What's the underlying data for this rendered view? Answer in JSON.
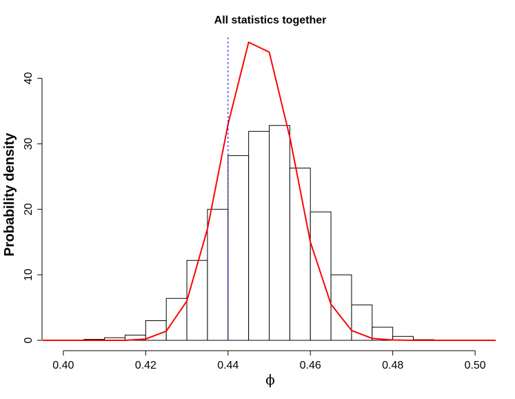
{
  "chart_data": {
    "type": "bar",
    "title": "All statistics together",
    "xlabel": "ϕ",
    "ylabel": "Probability density",
    "xlim": [
      0.395,
      0.505
    ],
    "ylim": [
      0,
      47
    ],
    "xticks": [
      0.4,
      0.42,
      0.44,
      0.46,
      0.48,
      0.5
    ],
    "xtick_labels": [
      "0.40",
      "0.42",
      "0.44",
      "0.46",
      "0.48",
      "0.50"
    ],
    "yticks": [
      0,
      10,
      20,
      30,
      40
    ],
    "ytick_labels": [
      "0",
      "10",
      "20",
      "30",
      "40"
    ],
    "grid": false,
    "histogram": {
      "bin_width": 0.005,
      "bin_starts": [
        0.405,
        0.41,
        0.415,
        0.42,
        0.425,
        0.43,
        0.435,
        0.44,
        0.445,
        0.45,
        0.455,
        0.46,
        0.465,
        0.47,
        0.475,
        0.48,
        0.485
      ],
      "values": [
        0.15,
        0.4,
        0.8,
        3.0,
        6.4,
        12.2,
        20.0,
        28.2,
        31.9,
        32.8,
        26.3,
        19.6,
        10.0,
        5.4,
        2.0,
        0.6,
        0.1
      ],
      "fill": "#ffffff",
      "stroke": "#000000"
    },
    "density_curve": {
      "color": "#ff0000",
      "x": [
        0.395,
        0.405,
        0.41,
        0.415,
        0.42,
        0.425,
        0.43,
        0.435,
        0.44,
        0.445,
        0.45,
        0.455,
        0.46,
        0.465,
        0.47,
        0.475,
        0.48,
        0.485,
        0.49,
        0.505
      ],
      "y": [
        0,
        0,
        0,
        0,
        0.2,
        1.4,
        6.0,
        17.0,
        33.0,
        45.5,
        44.0,
        31.0,
        15.0,
        5.5,
        1.5,
        0.3,
        0.05,
        0,
        0,
        0
      ]
    },
    "reference_line": {
      "x": 0.44,
      "color": "#0000ff",
      "style": "dashed"
    }
  }
}
